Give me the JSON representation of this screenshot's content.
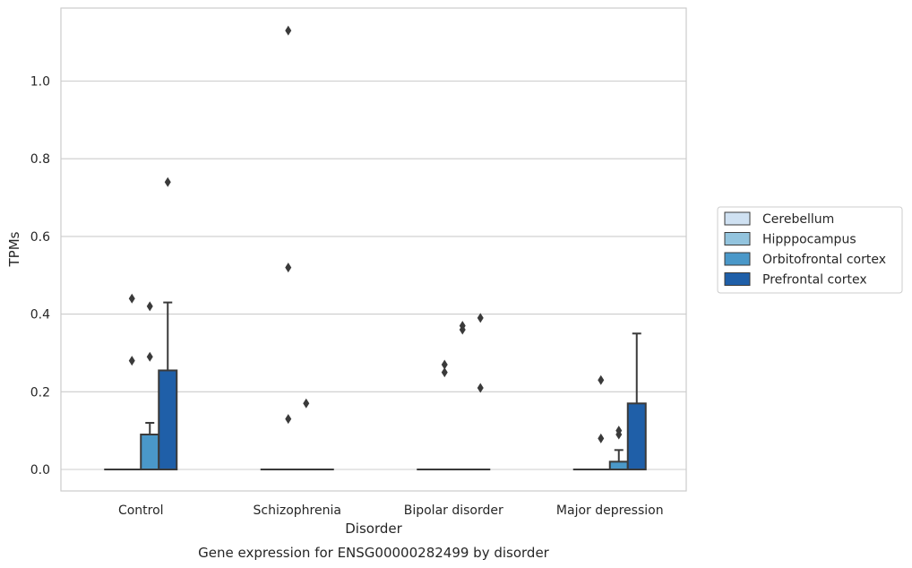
{
  "chart_data": {
    "type": "box",
    "caption": "Gene expression for ENSG00000282499 by disorder",
    "xlabel": "Disorder",
    "ylabel": "TPMs",
    "ylim": [
      -0.055,
      1.18
    ],
    "yticks": [
      "0.0",
      "0.2",
      "0.4",
      "0.6",
      "0.8",
      "1.0"
    ],
    "ytick_values": [
      0.0,
      0.2,
      0.4,
      0.6,
      0.8,
      1.0
    ],
    "grid": "horizontal",
    "legend_position": "center-right",
    "categories": [
      "Control",
      "Schizophrenia",
      "Bipolar disorder",
      "Major depression"
    ],
    "series": [
      {
        "name": "Cerebellum",
        "color": "#cfe1f2",
        "boxes": [
          {
            "q1": 0,
            "median": 0,
            "q3": 0,
            "whisker_low": 0,
            "whisker_high": 0,
            "outliers": []
          },
          {
            "q1": 0,
            "median": 0,
            "q3": 0,
            "whisker_low": 0,
            "whisker_high": 0,
            "outliers": []
          },
          {
            "q1": 0,
            "median": 0,
            "q3": 0,
            "whisker_low": 0,
            "whisker_high": 0,
            "outliers": []
          },
          {
            "q1": 0,
            "median": 0,
            "q3": 0,
            "whisker_low": 0,
            "whisker_high": 0,
            "outliers": []
          }
        ]
      },
      {
        "name": "Hipppocampus",
        "color": "#93c4de",
        "boxes": [
          {
            "q1": 0,
            "median": 0,
            "q3": 0,
            "whisker_low": 0,
            "whisker_high": 0,
            "outliers": [
              0.28,
              0.44
            ]
          },
          {
            "q1": 0,
            "median": 0,
            "q3": 0,
            "whisker_low": 0,
            "whisker_high": 0,
            "outliers": [
              0.52,
              0.13,
              1.13
            ]
          },
          {
            "q1": 0,
            "median": 0,
            "q3": 0,
            "whisker_low": 0,
            "whisker_high": 0,
            "outliers": [
              0.25,
              0.27
            ]
          },
          {
            "q1": 0,
            "median": 0,
            "q3": 0,
            "whisker_low": 0,
            "whisker_high": 0,
            "outliers": [
              0.08,
              0.23
            ]
          }
        ]
      },
      {
        "name": "Orbitofrontal cortex",
        "color": "#4a98c9",
        "boxes": [
          {
            "q1": 0,
            "median": 0,
            "q3": 0.09,
            "whisker_low": 0,
            "whisker_high": 0.12,
            "outliers": [
              0.29,
              0.42
            ]
          },
          {
            "q1": 0,
            "median": 0,
            "q3": 0,
            "whisker_low": 0,
            "whisker_high": 0,
            "outliers": [
              0.17
            ]
          },
          {
            "q1": 0,
            "median": 0,
            "q3": 0,
            "whisker_low": 0,
            "whisker_high": 0,
            "outliers": [
              0.36,
              0.37
            ]
          },
          {
            "q1": 0,
            "median": 0,
            "q3": 0.02,
            "whisker_low": 0,
            "whisker_high": 0.05,
            "outliers": [
              0.09,
              0.1
            ]
          }
        ]
      },
      {
        "name": "Prefrontal cortex",
        "color": "#1f5fa8",
        "boxes": [
          {
            "q1": 0,
            "median": 0,
            "q3": 0.255,
            "whisker_low": 0,
            "whisker_high": 0.43,
            "outliers": [
              0.74
            ]
          },
          {
            "q1": 0,
            "median": 0,
            "q3": 0,
            "whisker_low": 0,
            "whisker_high": 0,
            "outliers": []
          },
          {
            "q1": 0,
            "median": 0,
            "q3": 0,
            "whisker_low": 0,
            "whisker_high": 0,
            "outliers": [
              0.21,
              0.39
            ]
          },
          {
            "q1": 0,
            "median": 0,
            "q3": 0.17,
            "whisker_low": 0,
            "whisker_high": 0.35,
            "outliers": []
          }
        ]
      }
    ]
  }
}
